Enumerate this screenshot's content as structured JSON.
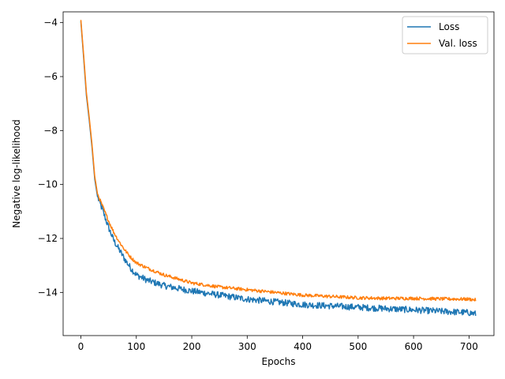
{
  "chart_data": {
    "type": "line",
    "title": "",
    "xlabel": "Epochs",
    "ylabel": "Negative log-likelihood",
    "xlim": [
      -32,
      745
    ],
    "ylim": [
      -15.6,
      -3.6
    ],
    "xticks": [
      0,
      100,
      200,
      300,
      400,
      500,
      600,
      700
    ],
    "yticks": [
      -4,
      -6,
      -8,
      -10,
      -12,
      -14
    ],
    "xtick_labels": [
      "0",
      "100",
      "200",
      "300",
      "400",
      "500",
      "600",
      "700"
    ],
    "ytick_labels": [
      "−4",
      "−6",
      "−8",
      "−10",
      "−12",
      "−14"
    ],
    "grid": false,
    "legend_position": "top-right",
    "series": [
      {
        "name": "Loss",
        "color": "#1f77b4",
        "noise": 0.12,
        "points": [
          [
            0,
            -3.95
          ],
          [
            5,
            -5.3
          ],
          [
            10,
            -6.7
          ],
          [
            15,
            -7.6
          ],
          [
            20,
            -8.6
          ],
          [
            25,
            -9.8
          ],
          [
            30,
            -10.45
          ],
          [
            40,
            -11.0
          ],
          [
            50,
            -11.6
          ],
          [
            60,
            -12.1
          ],
          [
            70,
            -12.45
          ],
          [
            80,
            -12.8
          ],
          [
            90,
            -13.1
          ],
          [
            100,
            -13.35
          ],
          [
            120,
            -13.55
          ],
          [
            150,
            -13.75
          ],
          [
            200,
            -13.95
          ],
          [
            250,
            -14.1
          ],
          [
            300,
            -14.25
          ],
          [
            350,
            -14.35
          ],
          [
            400,
            -14.45
          ],
          [
            450,
            -14.5
          ],
          [
            500,
            -14.55
          ],
          [
            550,
            -14.6
          ],
          [
            600,
            -14.65
          ],
          [
            650,
            -14.7
          ],
          [
            700,
            -14.75
          ],
          [
            712,
            -14.8
          ]
        ]
      },
      {
        "name": "Val. loss",
        "color": "#ff7f0e",
        "noise": 0.06,
        "points": [
          [
            0,
            -3.9
          ],
          [
            5,
            -5.2
          ],
          [
            10,
            -6.6
          ],
          [
            15,
            -7.5
          ],
          [
            20,
            -8.5
          ],
          [
            25,
            -9.7
          ],
          [
            30,
            -10.35
          ],
          [
            40,
            -10.85
          ],
          [
            50,
            -11.35
          ],
          [
            60,
            -11.8
          ],
          [
            70,
            -12.15
          ],
          [
            80,
            -12.45
          ],
          [
            90,
            -12.7
          ],
          [
            100,
            -12.9
          ],
          [
            120,
            -13.1
          ],
          [
            150,
            -13.35
          ],
          [
            200,
            -13.65
          ],
          [
            250,
            -13.8
          ],
          [
            300,
            -13.9
          ],
          [
            350,
            -14.0
          ],
          [
            400,
            -14.1
          ],
          [
            450,
            -14.15
          ],
          [
            500,
            -14.2
          ],
          [
            550,
            -14.22
          ],
          [
            600,
            -14.22
          ],
          [
            650,
            -14.24
          ],
          [
            700,
            -14.25
          ],
          [
            712,
            -14.28
          ]
        ]
      }
    ]
  }
}
